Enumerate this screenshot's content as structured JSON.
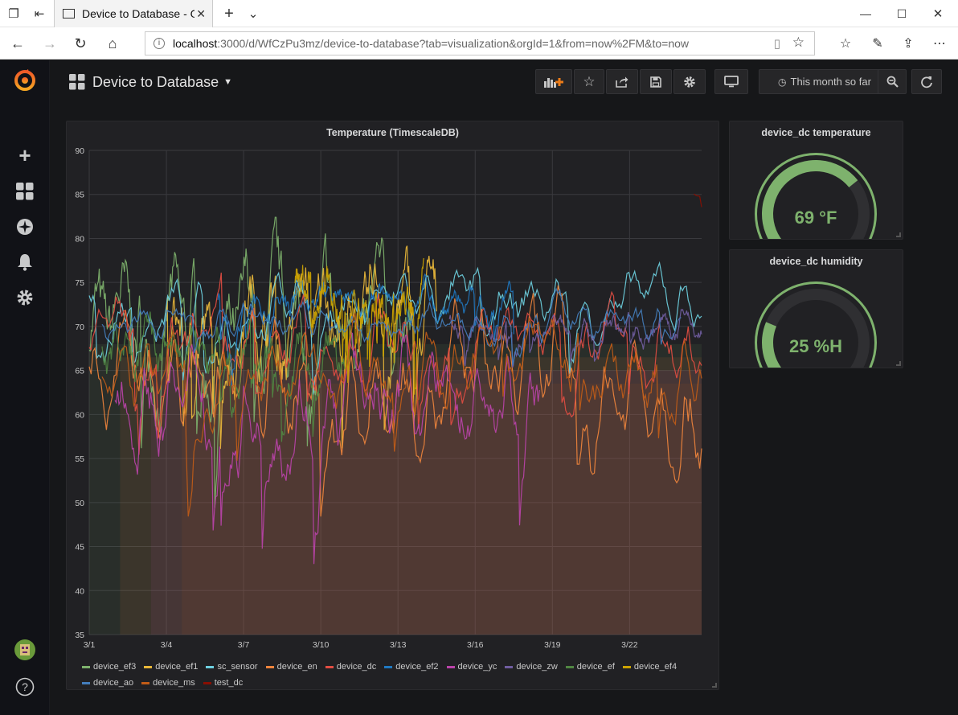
{
  "browser": {
    "tab_title": "Device to Database - Gr",
    "url_host": "localhost",
    "url_path": ":3000/d/WfCzPu3mz/device-to-database?tab=visualization&orgId=1&from=now%2FM&to=now"
  },
  "dashboard": {
    "title": "Device to Database",
    "time_picker": "This month so far"
  },
  "temp_panel": {
    "title": "Temperature (TimescaleDB)"
  },
  "chart_data": {
    "type": "line",
    "title": "Temperature (TimescaleDB)",
    "x_ticks": [
      "3/1",
      "3/4",
      "3/7",
      "3/10",
      "3/13",
      "3/16",
      "3/19",
      "3/22"
    ],
    "y_ticks": [
      "90",
      "85",
      "80",
      "75",
      "70",
      "65",
      "60",
      "55",
      "50",
      "45",
      "40",
      "35"
    ],
    "ylim": [
      35,
      90
    ],
    "grid": true,
    "legend_position": "bottom",
    "series": [
      {
        "name": "device_ef3",
        "color": "#7eb26d"
      },
      {
        "name": "device_ef1",
        "color": "#eab839"
      },
      {
        "name": "sc_sensor",
        "color": "#6ed0e0"
      },
      {
        "name": "device_en",
        "color": "#ef843c"
      },
      {
        "name": "device_dc",
        "color": "#e24d42"
      },
      {
        "name": "device_ef2",
        "color": "#1f78c1"
      },
      {
        "name": "device_yc",
        "color": "#ba43a9"
      },
      {
        "name": "device_zw",
        "color": "#705da0"
      },
      {
        "name": "device_ef",
        "color": "#508642"
      },
      {
        "name": "device_ef4",
        "color": "#cca300"
      },
      {
        "name": "device_ao",
        "color": "#447ebc"
      },
      {
        "name": "device_ms",
        "color": "#c15c17"
      },
      {
        "name": "test_dc",
        "color": "#890f02"
      }
    ]
  },
  "gauges": [
    {
      "title": "device_dc temperature",
      "value_text": "69 °F",
      "fraction": 0.69,
      "color": "#7eb26d"
    },
    {
      "title": "device_dc humidity",
      "value_text": "25 %H",
      "fraction": 0.25,
      "color": "#7eb26d"
    }
  ]
}
